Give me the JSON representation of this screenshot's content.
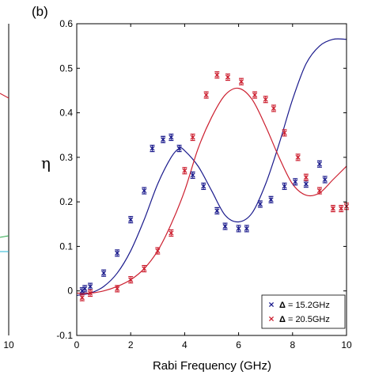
{
  "panel_label": "(b)",
  "left_panel_tick": "10",
  "chart_data": {
    "type": "scatter",
    "title": "",
    "xlabel": "Rabi Frequency (GHz)",
    "ylabel": "η",
    "xlim": [
      0,
      10
    ],
    "ylim": [
      -0.1,
      0.6
    ],
    "xticks": [
      "0",
      "2",
      "4",
      "6",
      "8",
      "10"
    ],
    "yticks": [
      "-0.1",
      "0",
      "0.1",
      "0.2",
      "0.3",
      "0.4",
      "0.5",
      "0.6"
    ],
    "legend_position": "bottom-right",
    "series": [
      {
        "name": "Δ = 15.2GHz",
        "legend_symbol": "Δ",
        "legend_value": " = 15.2GHz",
        "color": "#1a1a8c",
        "points": [
          [
            0.2,
            0.0
          ],
          [
            0.3,
            0.005
          ],
          [
            0.5,
            0.01
          ],
          [
            1.0,
            0.04
          ],
          [
            1.5,
            0.085
          ],
          [
            2.0,
            0.16
          ],
          [
            2.5,
            0.225
          ],
          [
            2.8,
            0.32
          ],
          [
            3.2,
            0.34
          ],
          [
            3.5,
            0.345
          ],
          [
            3.8,
            0.32
          ],
          [
            4.3,
            0.26
          ],
          [
            4.7,
            0.235
          ],
          [
            5.2,
            0.18
          ],
          [
            5.5,
            0.145
          ],
          [
            6.0,
            0.14
          ],
          [
            6.3,
            0.14
          ],
          [
            6.8,
            0.195
          ],
          [
            7.2,
            0.205
          ],
          [
            7.7,
            0.235
          ],
          [
            8.1,
            0.245
          ],
          [
            8.5,
            0.24
          ],
          [
            9.0,
            0.285
          ],
          [
            9.2,
            0.25
          ]
        ],
        "fit": [
          [
            0,
            -0.01
          ],
          [
            0.5,
            -0.005
          ],
          [
            1.0,
            0.01
          ],
          [
            1.5,
            0.04
          ],
          [
            2.0,
            0.09
          ],
          [
            2.5,
            0.16
          ],
          [
            3.0,
            0.24
          ],
          [
            3.5,
            0.3
          ],
          [
            3.8,
            0.32
          ],
          [
            4.0,
            0.315
          ],
          [
            4.5,
            0.28
          ],
          [
            5.0,
            0.225
          ],
          [
            5.5,
            0.17
          ],
          [
            6.0,
            0.155
          ],
          [
            6.5,
            0.175
          ],
          [
            7.0,
            0.24
          ],
          [
            7.5,
            0.33
          ],
          [
            8.0,
            0.43
          ],
          [
            8.5,
            0.51
          ],
          [
            9.0,
            0.55
          ],
          [
            9.5,
            0.565
          ],
          [
            10.0,
            0.565
          ]
        ]
      },
      {
        "name": "Δ = 20.5GHz",
        "legend_symbol": "Δ",
        "legend_value": " = 20.5GHz",
        "color": "#cc1f2f",
        "points": [
          [
            0.2,
            -0.015
          ],
          [
            0.5,
            -0.005
          ],
          [
            1.5,
            0.005
          ],
          [
            2.0,
            0.025
          ],
          [
            2.5,
            0.05
          ],
          [
            3.0,
            0.09
          ],
          [
            3.5,
            0.13
          ],
          [
            4.0,
            0.27
          ],
          [
            4.3,
            0.345
          ],
          [
            4.8,
            0.44
          ],
          [
            5.2,
            0.485
          ],
          [
            5.6,
            0.48
          ],
          [
            6.1,
            0.47
          ],
          [
            6.6,
            0.44
          ],
          [
            7.0,
            0.43
          ],
          [
            7.3,
            0.41
          ],
          [
            7.7,
            0.355
          ],
          [
            8.2,
            0.3
          ],
          [
            8.5,
            0.255
          ],
          [
            9.0,
            0.225
          ],
          [
            9.5,
            0.185
          ],
          [
            9.8,
            0.185
          ],
          [
            10.0,
            0.19
          ]
        ],
        "fit": [
          [
            0,
            -0.005
          ],
          [
            0.5,
            -0.005
          ],
          [
            1.0,
            0.0
          ],
          [
            1.5,
            0.01
          ],
          [
            2.0,
            0.025
          ],
          [
            2.5,
            0.05
          ],
          [
            3.0,
            0.09
          ],
          [
            3.5,
            0.15
          ],
          [
            4.0,
            0.225
          ],
          [
            4.5,
            0.32
          ],
          [
            5.0,
            0.39
          ],
          [
            5.5,
            0.44
          ],
          [
            6.0,
            0.455
          ],
          [
            6.5,
            0.43
          ],
          [
            7.0,
            0.37
          ],
          [
            7.5,
            0.3
          ],
          [
            8.0,
            0.24
          ],
          [
            8.5,
            0.215
          ],
          [
            9.0,
            0.22
          ],
          [
            9.5,
            0.25
          ],
          [
            10.0,
            0.28
          ]
        ]
      }
    ]
  }
}
